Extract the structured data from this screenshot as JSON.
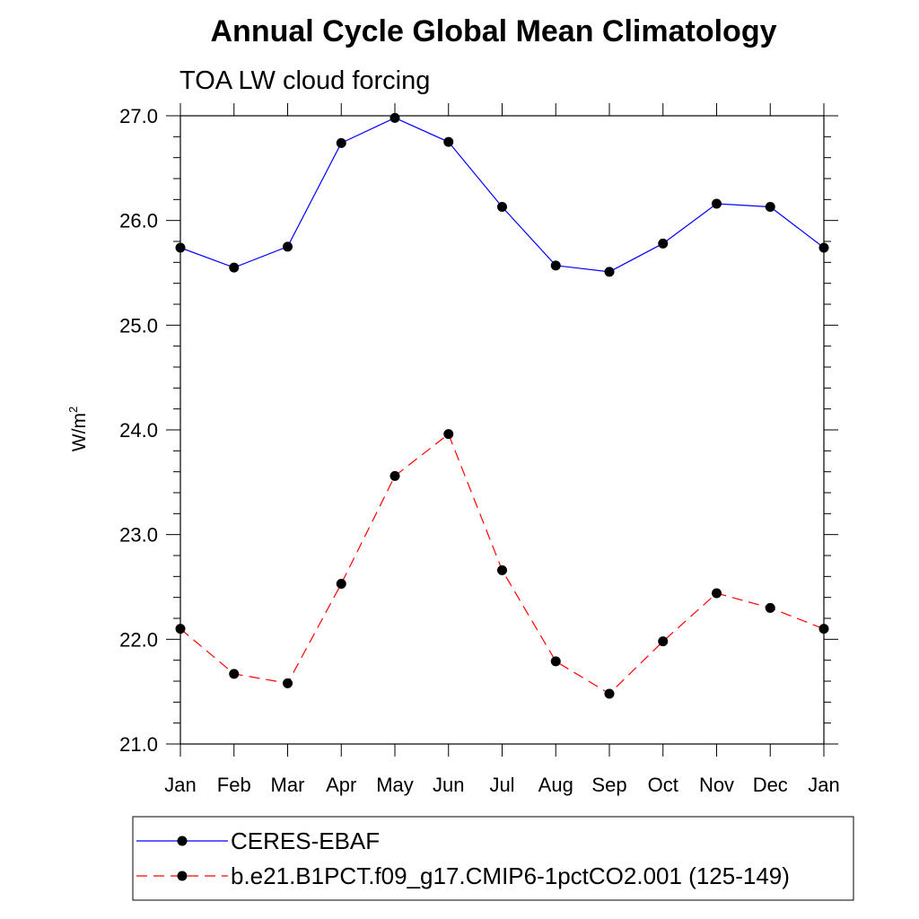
{
  "chart_data": {
    "type": "line",
    "title": "Annual Cycle Global Mean Climatology",
    "subtitle": "TOA LW cloud forcing",
    "ylabel": "W/m",
    "ylabel_superscript": "2",
    "ylim": [
      21.0,
      27.0
    ],
    "y_ticks": [
      "21.0",
      "22.0",
      "23.0",
      "24.0",
      "25.0",
      "26.0",
      "27.0"
    ],
    "categories": [
      "Jan",
      "Feb",
      "Mar",
      "Apr",
      "May",
      "Jun",
      "Jul",
      "Aug",
      "Sep",
      "Oct",
      "Nov",
      "Dec",
      "Jan"
    ],
    "series": [
      {
        "name": "CERES-EBAF",
        "color": "#0000ff",
        "dash": "solid",
        "values": [
          25.74,
          25.55,
          25.75,
          26.74,
          26.98,
          26.75,
          26.13,
          25.57,
          25.51,
          25.78,
          26.16,
          26.13,
          25.74
        ]
      },
      {
        "name": "b.e21.B1PCT.f09_g17.CMIP6-1pctCO2.001 (125-149)",
        "color": "#ff0000",
        "dash": "dashed",
        "values": [
          22.1,
          21.67,
          21.58,
          22.53,
          23.56,
          23.96,
          22.66,
          21.79,
          21.48,
          21.98,
          22.44,
          22.3,
          22.1
        ]
      }
    ],
    "grid": false,
    "legend_position": "bottom"
  }
}
